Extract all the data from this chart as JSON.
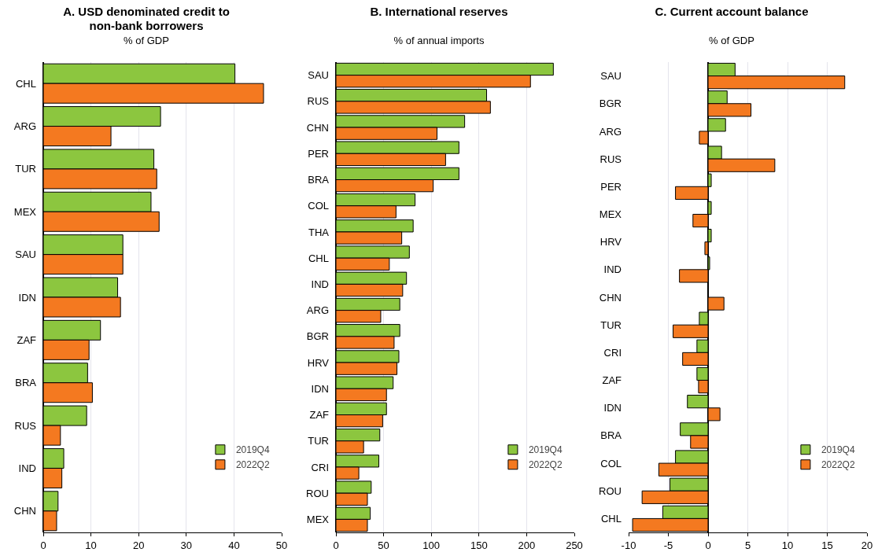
{
  "chart_data": [
    {
      "type": "bar",
      "orientation": "horizontal",
      "title": "A. USD denominated credit to non-bank borrowers",
      "subtitle": "% of GDP",
      "categories": [
        "CHL",
        "ARG",
        "TUR",
        "MEX",
        "SAU",
        "IDN",
        "ZAF",
        "BRA",
        "RUS",
        "IND",
        "CHN"
      ],
      "series": [
        {
          "name": "2019Q4",
          "color": "#8cc63f",
          "values": [
            40.2,
            24.6,
            23.2,
            22.6,
            16.7,
            15.6,
            12.0,
            9.3,
            9.1,
            4.3,
            3.1
          ]
        },
        {
          "name": "2022Q2",
          "color": "#f47920",
          "values": [
            46.2,
            14.2,
            23.8,
            24.3,
            16.7,
            16.2,
            9.6,
            10.3,
            3.6,
            3.9,
            2.8
          ]
        }
      ],
      "xlim": [
        0,
        50
      ],
      "xticks": [
        0,
        10,
        20,
        30,
        40,
        50
      ],
      "grid": "x",
      "legend": "bottom right"
    },
    {
      "type": "bar",
      "orientation": "horizontal",
      "title": "B. International reserves",
      "subtitle": "% of annual imports",
      "categories": [
        "SAU",
        "RUS",
        "CHN",
        "PER",
        "BRA",
        "COL",
        "THA",
        "CHL",
        "IND",
        "ARG",
        "BGR",
        "HRV",
        "IDN",
        "ZAF",
        "TUR",
        "CRI",
        "ROU",
        "MEX"
      ],
      "series": [
        {
          "name": "2019Q4",
          "color": "#8cc63f",
          "values": [
            228,
            158,
            135,
            129,
            129,
            83,
            81,
            77,
            74,
            67,
            67,
            66,
            60,
            53,
            46,
            45,
            37,
            36
          ]
        },
        {
          "name": "2022Q2",
          "color": "#f47920",
          "values": [
            204,
            162,
            106,
            115,
            102,
            63,
            69,
            56,
            70,
            47,
            61,
            64,
            53,
            49,
            29,
            24,
            33,
            33
          ]
        }
      ],
      "xlim": [
        0,
        250
      ],
      "xticks": [
        0,
        50,
        100,
        150,
        200,
        250
      ],
      "grid": "x",
      "legend": "bottom right"
    },
    {
      "type": "bar",
      "orientation": "horizontal",
      "title": "C. Current account balance",
      "subtitle": "% of GDP",
      "categories": [
        "SAU",
        "BGR",
        "ARG",
        "RUS",
        "PER",
        "MEX",
        "HRV",
        "IND",
        "CHN",
        "TUR",
        "CRI",
        "ZAF",
        "IDN",
        "BRA",
        "COL",
        "ROU",
        "CHL"
      ],
      "series": [
        {
          "name": "2019Q4",
          "color": "#8cc63f",
          "values": [
            3.4,
            2.4,
            2.2,
            1.7,
            0.4,
            0.4,
            0.4,
            0.2,
            null,
            -1.1,
            -1.4,
            -1.4,
            -2.6,
            -3.5,
            -4.1,
            -4.8,
            -5.7
          ]
        },
        {
          "name": "2022Q2",
          "color": "#f47920",
          "values": [
            17.2,
            5.4,
            -1.1,
            8.4,
            -4.1,
            -1.9,
            -0.4,
            -3.6,
            2.0,
            -4.4,
            -3.2,
            -1.2,
            1.5,
            -2.2,
            -6.2,
            -8.3,
            -9.5
          ]
        }
      ],
      "xlim": [
        -10,
        20
      ],
      "xticks": [
        -10,
        -5,
        0,
        5,
        10,
        15,
        20
      ],
      "grid": "x",
      "legend": "bottom right"
    }
  ]
}
